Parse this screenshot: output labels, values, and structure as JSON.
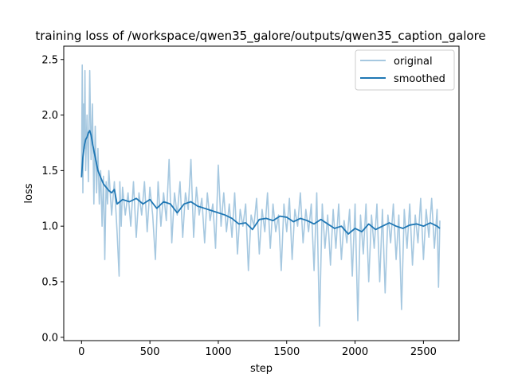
{
  "chart_data": {
    "type": "line",
    "title": "training loss of /workspace/qwen35_galore/outputs/qwen35_caption_galore",
    "xlabel": "step",
    "ylabel": "loss",
    "xlim": [
      -130,
      2760
    ],
    "ylim": [
      -0.03,
      2.62
    ],
    "xticks": [
      0,
      500,
      1000,
      1500,
      2000,
      2500
    ],
    "yticks": [
      0.0,
      0.5,
      1.0,
      1.5,
      2.0,
      2.5
    ],
    "xtick_labels": [
      "0",
      "500",
      "1000",
      "1500",
      "2000",
      "2500"
    ],
    "ytick_labels": [
      "0.0",
      "0.5",
      "1.0",
      "1.5",
      "2.0",
      "2.5"
    ],
    "grid": false,
    "legend": {
      "placement": "top-right",
      "entries": [
        "original",
        "smoothed"
      ]
    },
    "series": [
      {
        "name": "original",
        "color": "#a6c8e0",
        "x": [
          0,
          5,
          10,
          15,
          20,
          25,
          30,
          40,
          50,
          60,
          70,
          80,
          90,
          100,
          110,
          120,
          130,
          140,
          150,
          160,
          170,
          180,
          190,
          200,
          220,
          240,
          260,
          275,
          280,
          290,
          300,
          320,
          340,
          360,
          380,
          400,
          420,
          440,
          460,
          480,
          500,
          520,
          540,
          560,
          580,
          600,
          620,
          640,
          660,
          680,
          700,
          720,
          740,
          760,
          780,
          800,
          820,
          840,
          860,
          880,
          900,
          920,
          940,
          960,
          980,
          1000,
          1020,
          1040,
          1060,
          1080,
          1100,
          1120,
          1140,
          1160,
          1180,
          1200,
          1220,
          1240,
          1260,
          1280,
          1300,
          1320,
          1340,
          1360,
          1380,
          1400,
          1420,
          1440,
          1460,
          1480,
          1500,
          1520,
          1540,
          1560,
          1580,
          1600,
          1620,
          1640,
          1660,
          1680,
          1700,
          1720,
          1740,
          1760,
          1780,
          1800,
          1820,
          1840,
          1860,
          1880,
          1900,
          1920,
          1940,
          1960,
          1980,
          2000,
          2020,
          2040,
          2060,
          2080,
          2100,
          2120,
          2140,
          2160,
          2180,
          2200,
          2220,
          2240,
          2260,
          2280,
          2300,
          2320,
          2340,
          2360,
          2380,
          2400,
          2420,
          2440,
          2460,
          2480,
          2500,
          2520,
          2540,
          2560,
          2580,
          2600,
          2610,
          2620
        ],
        "values": [
          1.45,
          2.45,
          1.3,
          2.1,
          1.7,
          2.4,
          1.5,
          2.0,
          1.4,
          2.4,
          1.6,
          2.1,
          1.2,
          1.9,
          1.3,
          1.7,
          1.2,
          1.5,
          1.0,
          1.45,
          0.7,
          1.4,
          1.2,
          1.5,
          1.1,
          1.4,
          0.95,
          0.55,
          1.4,
          1.0,
          1.35,
          1.1,
          1.3,
          1.0,
          1.4,
          0.9,
          1.3,
          1.1,
          1.4,
          0.95,
          1.35,
          1.1,
          0.7,
          1.4,
          1.0,
          1.3,
          1.05,
          1.6,
          0.85,
          1.3,
          1.1,
          1.4,
          0.9,
          1.3,
          1.15,
          1.6,
          0.9,
          1.35,
          1.1,
          1.25,
          0.85,
          1.3,
          1.05,
          1.2,
          0.8,
          1.55,
          1.0,
          1.3,
          0.95,
          1.2,
          0.9,
          1.3,
          0.75,
          1.15,
          1.0,
          1.2,
          0.6,
          1.1,
          1.0,
          1.25,
          0.75,
          1.15,
          0.95,
          1.3,
          0.8,
          1.2,
          0.95,
          1.1,
          0.6,
          1.2,
          0.95,
          1.25,
          0.7,
          1.15,
          1.0,
          1.3,
          0.85,
          1.15,
          0.95,
          1.2,
          0.6,
          1.3,
          0.1,
          1.2,
          0.8,
          1.1,
          0.65,
          1.15,
          0.8,
          1.2,
          0.7,
          1.05,
          0.85,
          1.15,
          0.55,
          1.2,
          0.15,
          1.1,
          0.75,
          1.2,
          0.5,
          1.1,
          0.8,
          1.2,
          0.5,
          1.15,
          0.4,
          1.1,
          0.85,
          1.2,
          0.7,
          1.1,
          0.25,
          1.15,
          0.8,
          1.2,
          0.65,
          1.1,
          0.85,
          1.25,
          0.7,
          1.15,
          0.9,
          1.25,
          0.8,
          1.15,
          0.45,
          1.05
        ]
      },
      {
        "name": "smoothed",
        "color": "#1f77b4",
        "x": [
          0,
          10,
          20,
          30,
          40,
          50,
          60,
          70,
          80,
          90,
          100,
          120,
          140,
          160,
          180,
          200,
          220,
          240,
          260,
          280,
          300,
          350,
          400,
          450,
          500,
          550,
          600,
          650,
          700,
          750,
          800,
          850,
          900,
          950,
          1000,
          1050,
          1100,
          1150,
          1200,
          1250,
          1300,
          1350,
          1400,
          1450,
          1500,
          1550,
          1600,
          1650,
          1700,
          1750,
          1800,
          1850,
          1900,
          1950,
          2000,
          2050,
          2100,
          2150,
          2200,
          2250,
          2300,
          2350,
          2400,
          2450,
          2500,
          2550,
          2600,
          2620
        ],
        "values": [
          1.44,
          1.62,
          1.72,
          1.78,
          1.8,
          1.84,
          1.86,
          1.82,
          1.75,
          1.68,
          1.62,
          1.5,
          1.44,
          1.38,
          1.35,
          1.32,
          1.3,
          1.33,
          1.2,
          1.22,
          1.24,
          1.22,
          1.25,
          1.2,
          1.24,
          1.16,
          1.22,
          1.2,
          1.12,
          1.2,
          1.22,
          1.18,
          1.16,
          1.14,
          1.12,
          1.1,
          1.07,
          1.02,
          1.03,
          0.97,
          1.06,
          1.07,
          1.05,
          1.09,
          1.08,
          1.04,
          1.07,
          1.05,
          1.02,
          1.06,
          1.02,
          0.98,
          1.0,
          0.93,
          0.98,
          0.95,
          1.02,
          0.97,
          1.0,
          1.03,
          1.0,
          0.98,
          1.01,
          1.02,
          1.0,
          1.03,
          1.0,
          0.98
        ]
      }
    ]
  }
}
